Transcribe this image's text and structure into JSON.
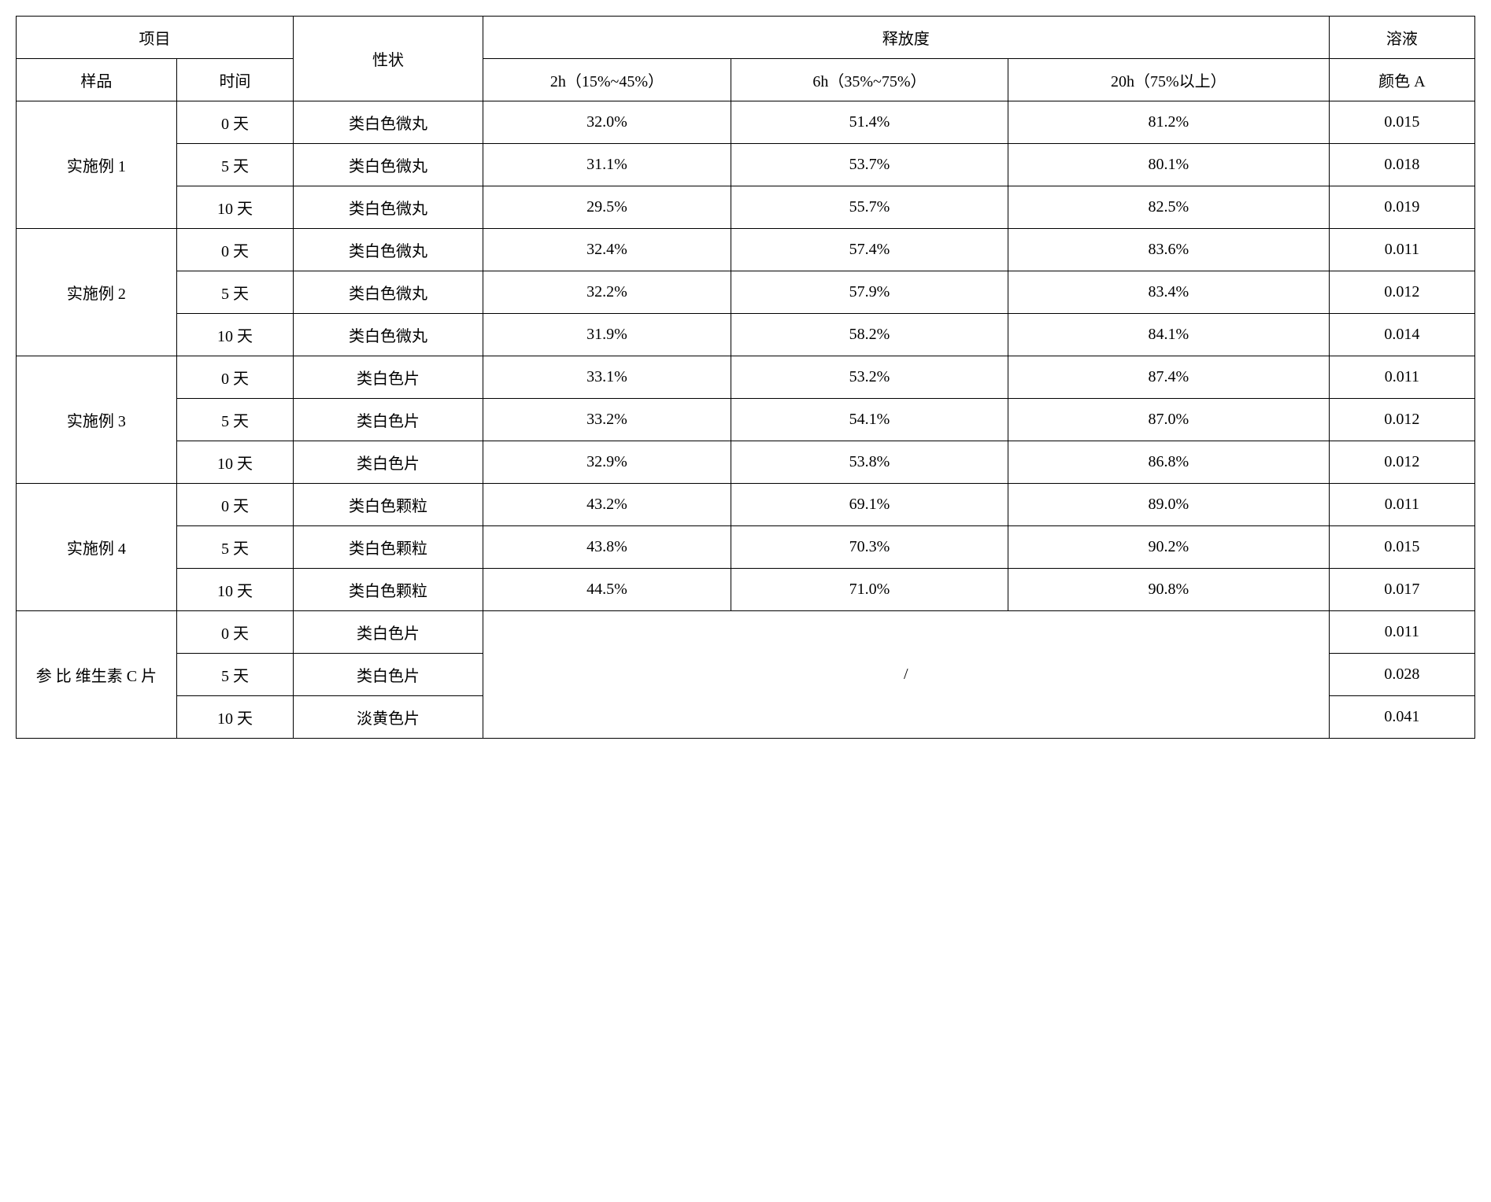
{
  "headers": {
    "project": "项目",
    "property": "性状",
    "release": "释放度",
    "solution": "溶液",
    "sample": "样品",
    "time": "时间",
    "h2": "2h（15%~45%）",
    "h6": "6h（35%~75%）",
    "h20": "20h（75%以上）",
    "colorA": "颜色 A"
  },
  "groups": [
    {
      "sample": "实施例 1",
      "rows": [
        {
          "time": "0 天",
          "property": "类白色微丸",
          "h2": "32.0%",
          "h6": "51.4%",
          "h20": "81.2%",
          "color": "0.015"
        },
        {
          "time": "5 天",
          "property": "类白色微丸",
          "h2": "31.1%",
          "h6": "53.7%",
          "h20": "80.1%",
          "color": "0.018"
        },
        {
          "time": "10 天",
          "property": "类白色微丸",
          "h2": "29.5%",
          "h6": "55.7%",
          "h20": "82.5%",
          "color": "0.019"
        }
      ]
    },
    {
      "sample": "实施例 2",
      "rows": [
        {
          "time": "0 天",
          "property": "类白色微丸",
          "h2": "32.4%",
          "h6": "57.4%",
          "h20": "83.6%",
          "color": "0.011"
        },
        {
          "time": "5 天",
          "property": "类白色微丸",
          "h2": "32.2%",
          "h6": "57.9%",
          "h20": "83.4%",
          "color": "0.012"
        },
        {
          "time": "10 天",
          "property": "类白色微丸",
          "h2": "31.9%",
          "h6": "58.2%",
          "h20": "84.1%",
          "color": "0.014"
        }
      ]
    },
    {
      "sample": "实施例 3",
      "rows": [
        {
          "time": "0 天",
          "property": "类白色片",
          "h2": "33.1%",
          "h6": "53.2%",
          "h20": "87.4%",
          "color": "0.011"
        },
        {
          "time": "5 天",
          "property": "类白色片",
          "h2": "33.2%",
          "h6": "54.1%",
          "h20": "87.0%",
          "color": "0.012"
        },
        {
          "time": "10 天",
          "property": "类白色片",
          "h2": "32.9%",
          "h6": "53.8%",
          "h20": "86.8%",
          "color": "0.012"
        }
      ]
    },
    {
      "sample": "实施例 4",
      "rows": [
        {
          "time": "0 天",
          "property": "类白色颗粒",
          "h2": "43.2%",
          "h6": "69.1%",
          "h20": "89.0%",
          "color": "0.011"
        },
        {
          "time": "5 天",
          "property": "类白色颗粒",
          "h2": "43.8%",
          "h6": "70.3%",
          "h20": "90.2%",
          "color": "0.015"
        },
        {
          "time": "10 天",
          "property": "类白色颗粒",
          "h2": "44.5%",
          "h6": "71.0%",
          "h20": "90.8%",
          "color": "0.017"
        }
      ]
    }
  ],
  "reference": {
    "sample": "参 比 维生素 C 片",
    "slash": "/",
    "rows": [
      {
        "time": "0 天",
        "property": "类白色片",
        "color": "0.011"
      },
      {
        "time": "5 天",
        "property": "类白色片",
        "color": "0.028"
      },
      {
        "time": "10 天",
        "property": "淡黄色片",
        "color": "0.041"
      }
    ]
  },
  "styling": {
    "border_color": "#000000",
    "background_color": "#ffffff",
    "font_family": "SimSun",
    "cell_fontsize": 20,
    "cell_padding": "12px 8px",
    "text_align": "center"
  }
}
